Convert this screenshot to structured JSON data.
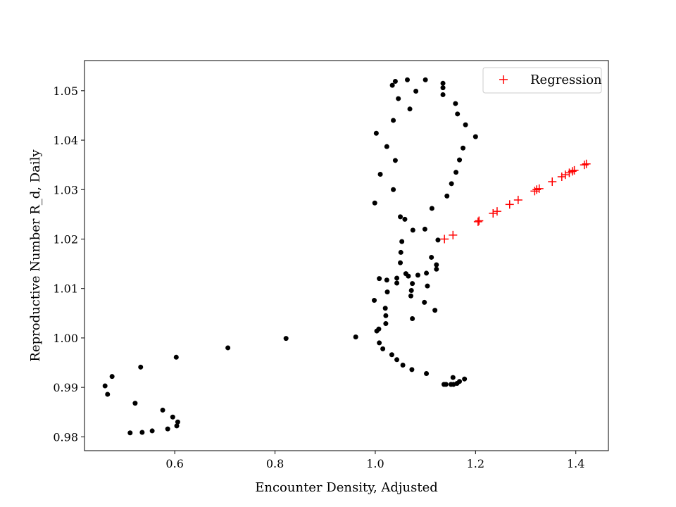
{
  "chart_data": {
    "type": "scatter",
    "title": "",
    "xlabel": "Encounter Density, Adjusted",
    "ylabel": "Reproductive Number R_d, Daily",
    "xlim": [
      0.42,
      1.465
    ],
    "ylim": [
      0.9772,
      1.0561
    ],
    "xticks": [
      0.6,
      0.8,
      1.0,
      1.2,
      1.4
    ],
    "xtick_labels": [
      "0.6",
      "0.8",
      "1.0",
      "1.2",
      "1.4"
    ],
    "yticks": [
      0.98,
      0.99,
      1.0,
      1.01,
      1.02,
      1.03,
      1.04,
      1.05
    ],
    "ytick_labels": [
      "0.98",
      "0.99",
      "1.00",
      "1.01",
      "1.02",
      "1.03",
      "1.04",
      "1.05"
    ],
    "grid": false,
    "legend_position": "top-right",
    "series": [
      {
        "marker": "dot",
        "color": "#000000",
        "points": [
          [
            0.461,
            0.9903
          ],
          [
            0.466,
            0.9886
          ],
          [
            0.475,
            0.9922
          ],
          [
            0.532,
            0.9941
          ],
          [
            0.603,
            0.9961
          ],
          [
            0.521,
            0.9868
          ],
          [
            0.576,
            0.9854
          ],
          [
            0.596,
            0.984
          ],
          [
            0.606,
            0.983
          ],
          [
            0.604,
            0.9822
          ],
          [
            0.586,
            0.9816
          ],
          [
            0.555,
            0.9812
          ],
          [
            0.535,
            0.9809
          ],
          [
            0.511,
            0.9808
          ],
          [
            0.706,
            0.998
          ],
          [
            0.822,
            0.9999
          ],
          [
            0.961,
            1.0002
          ],
          [
            1.003,
            1.0014
          ],
          [
            1.007,
            1.0018
          ],
          [
            1.008,
            0.999
          ],
          [
            1.015,
            0.9978
          ],
          [
            1.033,
            0.9966
          ],
          [
            1.043,
            0.9956
          ],
          [
            1.055,
            0.9945
          ],
          [
            1.073,
            0.9936
          ],
          [
            1.102,
            0.9928
          ],
          [
            1.137,
            0.9906
          ],
          [
            1.141,
            0.9906
          ],
          [
            1.151,
            0.9906
          ],
          [
            1.156,
            0.9906
          ],
          [
            1.155,
            0.992
          ],
          [
            1.163,
            0.9908
          ],
          [
            1.168,
            0.9912
          ],
          [
            1.178,
            0.9917
          ],
          [
            0.998,
            1.0076
          ],
          [
            1.02,
            1.006
          ],
          [
            1.021,
            1.0045
          ],
          [
            1.021,
            1.0029
          ],
          [
            1.008,
            1.012
          ],
          [
            1.023,
            1.0117
          ],
          [
            1.024,
            1.0093
          ],
          [
            1.043,
            1.0111
          ],
          [
            1.043,
            1.0121
          ],
          [
            1.05,
            1.0152
          ],
          [
            1.051,
            1.0173
          ],
          [
            1.053,
            1.0195
          ],
          [
            1.061,
            1.013
          ],
          [
            1.066,
            1.0125
          ],
          [
            1.071,
            1.0085
          ],
          [
            1.072,
            1.0096
          ],
          [
            1.074,
            1.011
          ],
          [
            1.074,
            1.0039
          ],
          [
            1.075,
            1.0218
          ],
          [
            1.085,
            1.0127
          ],
          [
            1.098,
            1.0072
          ],
          [
            1.099,
            1.022
          ],
          [
            1.102,
            1.0131
          ],
          [
            1.104,
            1.0105
          ],
          [
            1.112,
            1.0163
          ],
          [
            1.119,
            1.0056
          ],
          [
            1.122,
            1.0148
          ],
          [
            1.122,
            1.0139
          ],
          [
            1.125,
            1.0198
          ],
          [
            1.05,
            1.0245
          ],
          [
            1.059,
            1.024
          ],
          [
            1.113,
            1.0262
          ],
          [
            0.999,
            1.0273
          ],
          [
            1.01,
            1.0331
          ],
          [
            1.023,
            1.0387
          ],
          [
            1.002,
            1.0414
          ],
          [
            1.036,
            1.03
          ],
          [
            1.04,
            1.0359
          ],
          [
            1.036,
            1.044
          ],
          [
            1.034,
            1.0511
          ],
          [
            1.04,
            1.0519
          ],
          [
            1.046,
            1.0484
          ],
          [
            1.064,
            1.0522
          ],
          [
            1.069,
            1.0463
          ],
          [
            1.081,
            1.0499
          ],
          [
            1.1,
            1.0522
          ],
          [
            1.135,
            1.0515
          ],
          [
            1.135,
            1.0506
          ],
          [
            1.135,
            1.0492
          ],
          [
            1.16,
            1.0474
          ],
          [
            1.164,
            1.0453
          ],
          [
            1.18,
            1.0431
          ],
          [
            1.2,
            1.0407
          ],
          [
            1.175,
            1.0384
          ],
          [
            1.168,
            1.036
          ],
          [
            1.161,
            1.0335
          ],
          [
            1.152,
            1.0312
          ],
          [
            1.143,
            1.0287
          ]
        ]
      },
      {
        "name": "Regression",
        "marker": "plus",
        "color": "#ff0000",
        "points": [
          [
            1.138,
            1.02
          ],
          [
            1.155,
            1.0208
          ],
          [
            1.205,
            1.0235
          ],
          [
            1.207,
            1.0237
          ],
          [
            1.235,
            1.0252
          ],
          [
            1.243,
            1.0256
          ],
          [
            1.268,
            1.027
          ],
          [
            1.285,
            1.0279
          ],
          [
            1.318,
            1.0297
          ],
          [
            1.322,
            1.03
          ],
          [
            1.327,
            1.0302
          ],
          [
            1.353,
            1.0316
          ],
          [
            1.372,
            1.0326
          ],
          [
            1.379,
            1.033
          ],
          [
            1.387,
            1.0334
          ],
          [
            1.393,
            1.0337
          ],
          [
            1.397,
            1.0339
          ],
          [
            1.417,
            1.035
          ],
          [
            1.421,
            1.0352
          ]
        ]
      }
    ]
  }
}
